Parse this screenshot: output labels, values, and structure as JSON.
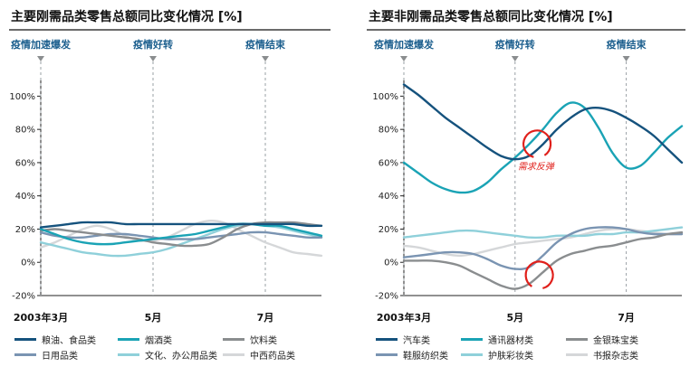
{
  "colors": {
    "dark_blue": "#15527d",
    "teal": "#1aa3b5",
    "grey": "#8a8d8f",
    "steel_blue": "#7a94b2",
    "light_teal": "#8fd0da",
    "light_grey": "#d5d7d9",
    "event_label": "#1c5f8e",
    "annotation_red": "#e0201b"
  },
  "chart_data": [
    {
      "type": "line",
      "title": "主要刚需品类零售总额同比变化情况 [%]",
      "x": [
        0,
        1,
        2,
        3,
        4,
        5,
        6,
        7,
        8,
        9,
        10,
        11,
        12,
        13,
        14,
        15,
        16,
        17,
        18,
        19,
        20
      ],
      "xticks": [
        {
          "x": 0,
          "label": "2003年3月"
        },
        {
          "x": 8,
          "label": "5月"
        },
        {
          "x": 16,
          "label": "7月"
        }
      ],
      "ylim": [
        -20,
        110
      ],
      "yticks": [
        -20,
        0,
        20,
        40,
        60,
        80,
        100
      ],
      "ytick_labels": [
        "-20%",
        "0%",
        "20%",
        "40%",
        "60%",
        "80%",
        "100%"
      ],
      "events": [
        {
          "x": 0,
          "label": "疫情加速爆发"
        },
        {
          "x": 8,
          "label": "疫情好转"
        },
        {
          "x": 16,
          "label": "疫情结束"
        }
      ],
      "series": [
        {
          "name": "粮油、食品类",
          "color": "dark_blue",
          "values": [
            21,
            22,
            23,
            24,
            24,
            24,
            23,
            23,
            23,
            23,
            23,
            23,
            23,
            23,
            23,
            23,
            23,
            23,
            23,
            22,
            22
          ]
        },
        {
          "name": "烟酒类",
          "color": "teal",
          "values": [
            20,
            17,
            14,
            12,
            11,
            11,
            12,
            13,
            14,
            15,
            16,
            17,
            19,
            21,
            23,
            23,
            22,
            22,
            20,
            18,
            16
          ]
        },
        {
          "name": "饮料类",
          "color": "grey",
          "values": [
            19,
            20,
            19,
            18,
            17,
            16,
            15,
            14,
            12,
            11,
            10,
            10,
            11,
            15,
            20,
            23,
            24,
            24,
            24,
            23,
            22
          ]
        },
        {
          "name": "日用品类",
          "color": "steel_blue",
          "values": [
            18,
            16,
            15,
            15,
            16,
            17,
            17,
            16,
            15,
            14,
            14,
            14,
            15,
            16,
            17,
            18,
            18,
            17,
            16,
            15,
            15
          ]
        },
        {
          "name": "文化、办公用品类",
          "color": "light_teal",
          "values": [
            12,
            10,
            8,
            6,
            5,
            4,
            4,
            5,
            6,
            8,
            11,
            14,
            17,
            20,
            22,
            23,
            22,
            21,
            19,
            17,
            15
          ]
        },
        {
          "name": "中西药品类",
          "color": "light_grey",
          "values": [
            9,
            12,
            16,
            20,
            22,
            20,
            16,
            13,
            13,
            15,
            19,
            23,
            25,
            24,
            20,
            16,
            12,
            9,
            6,
            5,
            4
          ]
        }
      ]
    },
    {
      "type": "line",
      "title": "主要非刚需品类零售总额同比变化情况 [%]",
      "x": [
        0,
        1,
        2,
        3,
        4,
        5,
        6,
        7,
        8,
        9,
        10,
        11,
        12,
        13,
        14,
        15,
        16,
        17,
        18,
        19,
        20
      ],
      "xticks": [
        {
          "x": 0,
          "label": "2003年3月"
        },
        {
          "x": 8,
          "label": "5月"
        },
        {
          "x": 16,
          "label": "7月"
        }
      ],
      "ylim": [
        -20,
        110
      ],
      "yticks": [
        -20,
        0,
        20,
        40,
        60,
        80,
        100
      ],
      "ytick_labels": [
        "-20%",
        "0%",
        "20%",
        "40%",
        "60%",
        "80%",
        "100%"
      ],
      "events": [
        {
          "x": 0,
          "label": "疫情加速爆发"
        },
        {
          "x": 8,
          "label": "疫情好转"
        },
        {
          "x": 16,
          "label": "疫情结束"
        }
      ],
      "annotations": [
        {
          "label": "需求反弹",
          "x": 9.5,
          "y": 75
        }
      ],
      "series": [
        {
          "name": "汽车类",
          "color": "dark_blue",
          "values": [
            107,
            101,
            94,
            87,
            81,
            75,
            69,
            64,
            62,
            64,
            71,
            80,
            87,
            92,
            93,
            91,
            87,
            82,
            76,
            68,
            60
          ]
        },
        {
          "name": "通讯器材类",
          "color": "teal",
          "values": [
            60,
            54,
            48,
            44,
            42,
            43,
            48,
            56,
            63,
            71,
            80,
            90,
            96,
            93,
            81,
            66,
            57,
            58,
            66,
            75,
            82
          ]
        },
        {
          "name": "金银珠宝类",
          "color": "grey",
          "values": [
            1,
            1,
            1,
            0,
            -2,
            -6,
            -10,
            -14,
            -16,
            -13,
            -6,
            1,
            5,
            7,
            9,
            10,
            12,
            14,
            15,
            17,
            18
          ]
        },
        {
          "name": "鞋服纺织类",
          "color": "steel_blue",
          "values": [
            3,
            4,
            5,
            6,
            6,
            5,
            2,
            -2,
            -4,
            -3,
            4,
            12,
            17,
            20,
            21,
            21,
            20,
            18,
            17,
            17,
            17
          ]
        },
        {
          "name": "护肤彩妆类",
          "color": "light_teal",
          "values": [
            15,
            16,
            17,
            18,
            19,
            19,
            18,
            17,
            16,
            15,
            15,
            16,
            16,
            16,
            17,
            17,
            18,
            18,
            19,
            20,
            21
          ]
        },
        {
          "name": "书报杂志类",
          "color": "light_grey",
          "values": [
            10,
            9,
            7,
            5,
            4,
            5,
            7,
            9,
            11,
            12,
            13,
            14,
            15,
            17,
            19,
            20,
            20,
            19,
            18,
            17,
            17
          ]
        }
      ]
    }
  ]
}
